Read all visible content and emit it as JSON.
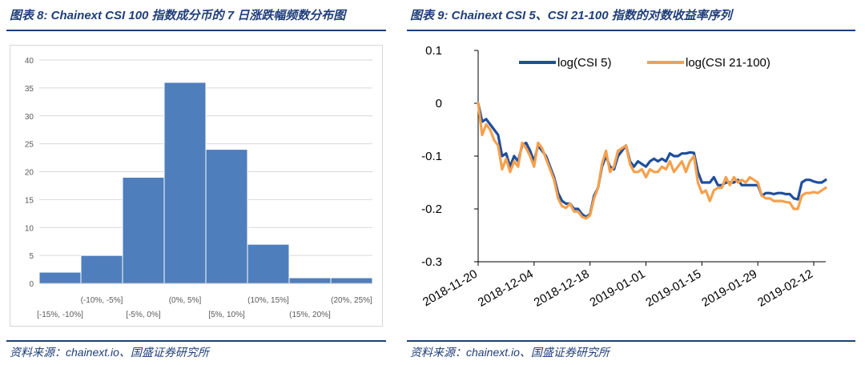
{
  "left": {
    "title": "图表 8: Chainext CSI 100 指数成分币的 7 日涨跌幅频数分布图",
    "source": "资料来源：chainext.io、国盛证券研究所"
  },
  "right": {
    "title": "图表 9:  Chainext CSI 5、CSI 21-100 指数的对数收益率序列",
    "source": "资料来源：chainext.io、国盛证券研究所"
  },
  "colors": {
    "bar": "#4f7ebd",
    "csi5": "#1f4e9c",
    "csi21": "#f5a04d",
    "accent": "#1f3e7a"
  },
  "chart_data": [
    {
      "type": "bar",
      "title": "Chainext CSI 100 指数成分币的 7 日涨跌幅频数分布图",
      "categories": [
        "[-15%, -10%]",
        "(-10%, -5%]",
        "[-5%, 0%]",
        "(0%, 5%]",
        "[5%, 10%]",
        "(10%, 15%]",
        "(15%, 20%]",
        "(20%, 25%]"
      ],
      "values": [
        2,
        5,
        19,
        36,
        24,
        7,
        1,
        1
      ],
      "ylim": [
        0,
        40
      ],
      "yticks": [
        0,
        5,
        10,
        15,
        20,
        25,
        30,
        35,
        40
      ],
      "grid": true
    },
    {
      "type": "line",
      "title": "Chainext CSI 5、CSI 21-100 指数的对数收益率序列",
      "ylim": [
        -0.3,
        0.1
      ],
      "yticks": [
        -0.3,
        -0.2,
        -0.1,
        0,
        0.1
      ],
      "ytick_labels": [
        "-0.3",
        "-0.2",
        "-0.1",
        "0",
        "0.1"
      ],
      "xlim": [
        0,
        87
      ],
      "xticks": [
        0,
        14,
        28,
        42,
        56,
        70,
        84
      ],
      "xtick_labels": [
        "2018-11-20",
        "2018-12-04",
        "2018-12-18",
        "2019-01-01",
        "2019-01-15",
        "2019-01-29",
        "2019-02-12"
      ],
      "legend": "top",
      "series": [
        {
          "name": "log(CSI 5)",
          "values": [
            0.0,
            -0.035,
            -0.03,
            -0.04,
            -0.05,
            -0.06,
            -0.1,
            -0.095,
            -0.12,
            -0.1,
            -0.11,
            -0.08,
            -0.075,
            -0.09,
            -0.11,
            -0.08,
            -0.09,
            -0.1,
            -0.12,
            -0.14,
            -0.17,
            -0.185,
            -0.19,
            -0.19,
            -0.2,
            -0.2,
            -0.21,
            -0.215,
            -0.21,
            -0.175,
            -0.16,
            -0.12,
            -0.1,
            -0.12,
            -0.125,
            -0.1,
            -0.09,
            -0.08,
            -0.11,
            -0.12,
            -0.11,
            -0.115,
            -0.12,
            -0.11,
            -0.105,
            -0.11,
            -0.105,
            -0.11,
            -0.095,
            -0.1,
            -0.1,
            -0.095,
            -0.095,
            -0.093,
            -0.094,
            -0.13,
            -0.15,
            -0.15,
            -0.15,
            -0.14,
            -0.155,
            -0.155,
            -0.15,
            -0.15,
            -0.15,
            -0.145,
            -0.155,
            -0.155,
            -0.155,
            -0.155,
            -0.155,
            -0.175,
            -0.17,
            -0.17,
            -0.172,
            -0.17,
            -0.17,
            -0.172,
            -0.172,
            -0.18,
            -0.182,
            -0.15,
            -0.145,
            -0.145,
            -0.148,
            -0.15,
            -0.15,
            -0.145
          ],
          "color": "#1f4e9c"
        },
        {
          "name": "log(CSI 21-100)",
          "values": [
            0.0,
            -0.06,
            -0.04,
            -0.05,
            -0.07,
            -0.08,
            -0.125,
            -0.105,
            -0.13,
            -0.11,
            -0.12,
            -0.075,
            -0.085,
            -0.1,
            -0.12,
            -0.075,
            -0.085,
            -0.105,
            -0.125,
            -0.145,
            -0.18,
            -0.195,
            -0.198,
            -0.19,
            -0.205,
            -0.205,
            -0.215,
            -0.218,
            -0.212,
            -0.18,
            -0.16,
            -0.115,
            -0.09,
            -0.13,
            -0.12,
            -0.09,
            -0.085,
            -0.08,
            -0.115,
            -0.13,
            -0.13,
            -0.125,
            -0.14,
            -0.125,
            -0.13,
            -0.13,
            -0.12,
            -0.125,
            -0.11,
            -0.13,
            -0.12,
            -0.11,
            -0.13,
            -0.11,
            -0.1,
            -0.15,
            -0.17,
            -0.165,
            -0.185,
            -0.165,
            -0.16,
            -0.16,
            -0.14,
            -0.155,
            -0.14,
            -0.15,
            -0.145,
            -0.15,
            -0.14,
            -0.145,
            -0.15,
            -0.175,
            -0.18,
            -0.18,
            -0.185,
            -0.185,
            -0.185,
            -0.187,
            -0.188,
            -0.2,
            -0.2,
            -0.175,
            -0.17,
            -0.17,
            -0.168,
            -0.17,
            -0.165,
            -0.16
          ],
          "color": "#f5a04d"
        }
      ]
    }
  ]
}
